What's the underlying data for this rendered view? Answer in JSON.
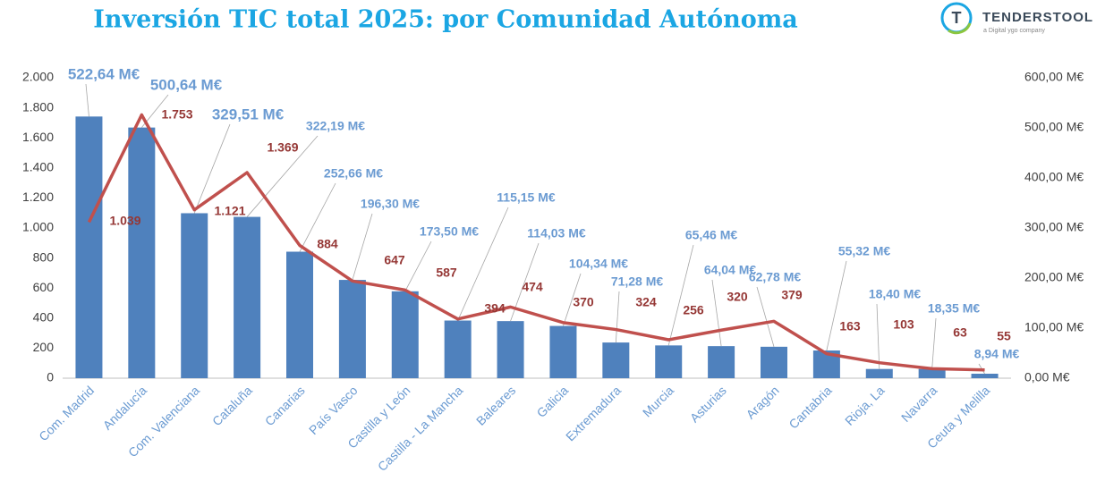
{
  "chart_data": {
    "type": "bar-line",
    "title": "Inversión TIC total 2025: por Comunidad Autónoma",
    "logo": {
      "name": "TENDERSTOOL",
      "tagline": "a Digital ygo company"
    },
    "categories": [
      "Com. Madrid",
      "Andalucía",
      "Com. Valenciana",
      "Cataluña",
      "Canarias",
      "País Vasco",
      "Castilla y León",
      "Castilla - La Mancha",
      "Baleares",
      "Galicia",
      "Extremadura",
      "Murcia",
      "Asturias",
      "Aragón",
      "Cantabria",
      "Rioja, La",
      "Navarra",
      "Ceuta y Melilla"
    ],
    "series": [
      {
        "type": "bar",
        "axis": "y2",
        "color": "#4f81bd",
        "label_color": "#6b9bd2",
        "values": [
          522.64,
          500.64,
          329.51,
          322.19,
          252.66,
          196.3,
          173.5,
          115.15,
          114.03,
          104.34,
          71.28,
          65.46,
          64.04,
          62.78,
          55.32,
          18.4,
          18.35,
          8.94
        ],
        "value_labels": [
          "522,64 M€",
          "500,64 M€",
          "329,51 M€",
          "322,19 M€",
          "252,66 M€",
          "196,30 M€",
          "173,50 M€",
          "115,15 M€",
          "114,03 M€",
          "104,34 M€",
          "71,28 M€",
          "65,46 M€",
          "64,04 M€",
          "62,78 M€",
          "55,32 M€",
          "18,40 M€",
          "18,35 M€",
          "8,94 M€"
        ]
      },
      {
        "type": "line",
        "axis": "y",
        "color": "#c0504d",
        "label_color": "#953735",
        "values": [
          1039,
          1753,
          1121,
          1369,
          884,
          647,
          587,
          394,
          474,
          370,
          324,
          256,
          320,
          379,
          163,
          103,
          63,
          55
        ],
        "value_labels": [
          "1.039",
          "1.753",
          "1.121",
          "1.369",
          "884",
          "647",
          "587",
          "394",
          "474",
          "370",
          "324",
          "256",
          "320",
          "379",
          "163",
          "103",
          "63",
          "55"
        ]
      }
    ],
    "ylim": [
      0,
      2000
    ],
    "yticks": [
      0,
      200,
      400,
      600,
      800,
      {
        "value": 1000,
        "label": "1.000"
      },
      {
        "value": 1200,
        "label": "1.200"
      },
      {
        "value": 1400,
        "label": "1.400"
      },
      {
        "value": 1600,
        "label": "1.600"
      },
      {
        "value": 1800,
        "label": "1.800"
      },
      {
        "value": 2000,
        "label": "2.000"
      }
    ],
    "y2lim": [
      0,
      600
    ],
    "y2ticks": [
      {
        "value": 0,
        "label": "0,00 M€"
      },
      {
        "value": 100,
        "label": "100,00 M€"
      },
      {
        "value": 200,
        "label": "200,00 M€"
      },
      {
        "value": 300,
        "label": "300,00 M€"
      },
      {
        "value": 400,
        "label": "400,00 M€"
      },
      {
        "value": 500,
        "label": "500,00 M€"
      },
      {
        "value": 600,
        "label": "600,00 M€"
      }
    ],
    "grid": false
  }
}
